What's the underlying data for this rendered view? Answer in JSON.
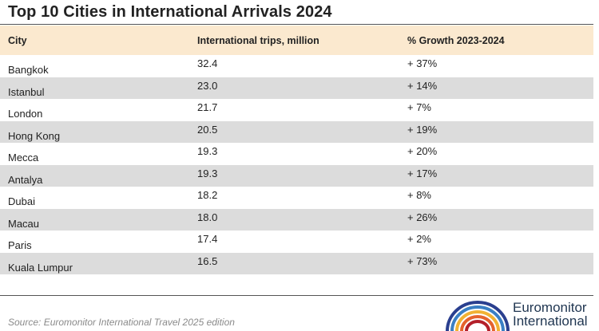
{
  "title": "Top 10 Cities in International Arrivals 2024",
  "table": {
    "headers": [
      "City",
      "International trips, million",
      "% Growth 2023-2024"
    ],
    "rows": [
      {
        "city": "Bangkok",
        "trips": "32.4",
        "growth": "+ 37%"
      },
      {
        "city": "Istanbul",
        "trips": "23.0",
        "growth": "+ 14%"
      },
      {
        "city": "London",
        "trips": "21.7",
        "growth": "+ 7%"
      },
      {
        "city": "Hong Kong",
        "trips": "20.5",
        "growth": "+ 19%"
      },
      {
        "city": "Mecca",
        "trips": "19.3",
        "growth": "+ 20%"
      },
      {
        "city": "Antalya",
        "trips": "19.3",
        "growth": "+ 17%"
      },
      {
        "city": "Dubai",
        "trips": "18.2",
        "growth": "+ 8%"
      },
      {
        "city": "Macau",
        "trips": "18.0",
        "growth": "+ 26%"
      },
      {
        "city": "Paris",
        "trips": "17.4",
        "growth": "+ 2%"
      },
      {
        "city": "Kuala Lumpur",
        "trips": "16.5",
        "growth": "+ 73%"
      }
    ]
  },
  "source": "Source: Euromonitor International Travel 2025 edition",
  "logo": {
    "line1": "Euromonitor",
    "line2": "International",
    "icon": "rainbow-arcs-logo-icon"
  },
  "colors": {
    "header_bg": "#fbe9cf",
    "alt_row_bg": "#dcdcdc",
    "logo_text": "#1f3550"
  }
}
